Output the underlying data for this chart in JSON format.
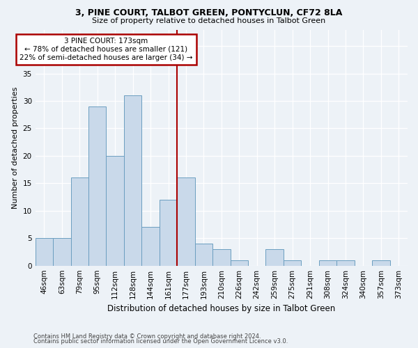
{
  "title1": "3, PINE COURT, TALBOT GREEN, PONTYCLUN, CF72 8LA",
  "title2": "Size of property relative to detached houses in Talbot Green",
  "xlabel": "Distribution of detached houses by size in Talbot Green",
  "ylabel": "Number of detached properties",
  "categories": [
    "46sqm",
    "63sqm",
    "79sqm",
    "95sqm",
    "112sqm",
    "128sqm",
    "144sqm",
    "161sqm",
    "177sqm",
    "193sqm",
    "210sqm",
    "226sqm",
    "242sqm",
    "259sqm",
    "275sqm",
    "291sqm",
    "308sqm",
    "324sqm",
    "340sqm",
    "357sqm",
    "373sqm"
  ],
  "values": [
    5,
    5,
    16,
    29,
    20,
    31,
    7,
    12,
    16,
    4,
    3,
    1,
    0,
    3,
    1,
    0,
    1,
    1,
    0,
    1,
    0
  ],
  "bar_color": "#c9d9ea",
  "bar_edgecolor": "#6b9ec0",
  "vline_x": 7.5,
  "vline_color": "#aa0000",
  "annotation_title": "3 PINE COURT: 173sqm",
  "annotation_line1": "← 78% of detached houses are smaller (121)",
  "annotation_line2": "22% of semi-detached houses are larger (34) →",
  "annotation_box_edgecolor": "#aa0000",
  "annotation_bg": "#ffffff",
  "ylim": [
    0,
    43
  ],
  "yticks": [
    0,
    5,
    10,
    15,
    20,
    25,
    30,
    35,
    40
  ],
  "footnote1": "Contains HM Land Registry data © Crown copyright and database right 2024.",
  "footnote2": "Contains public sector information licensed under the Open Government Licence v3.0.",
  "bg_color": "#edf2f7",
  "grid_color": "#ffffff",
  "title1_fontsize": 9.0,
  "title2_fontsize": 8.0,
  "ylabel_fontsize": 8.0,
  "xlabel_fontsize": 8.5,
  "tick_fontsize": 7.5,
  "annot_fontsize": 7.5,
  "footnote_fontsize": 6.0
}
